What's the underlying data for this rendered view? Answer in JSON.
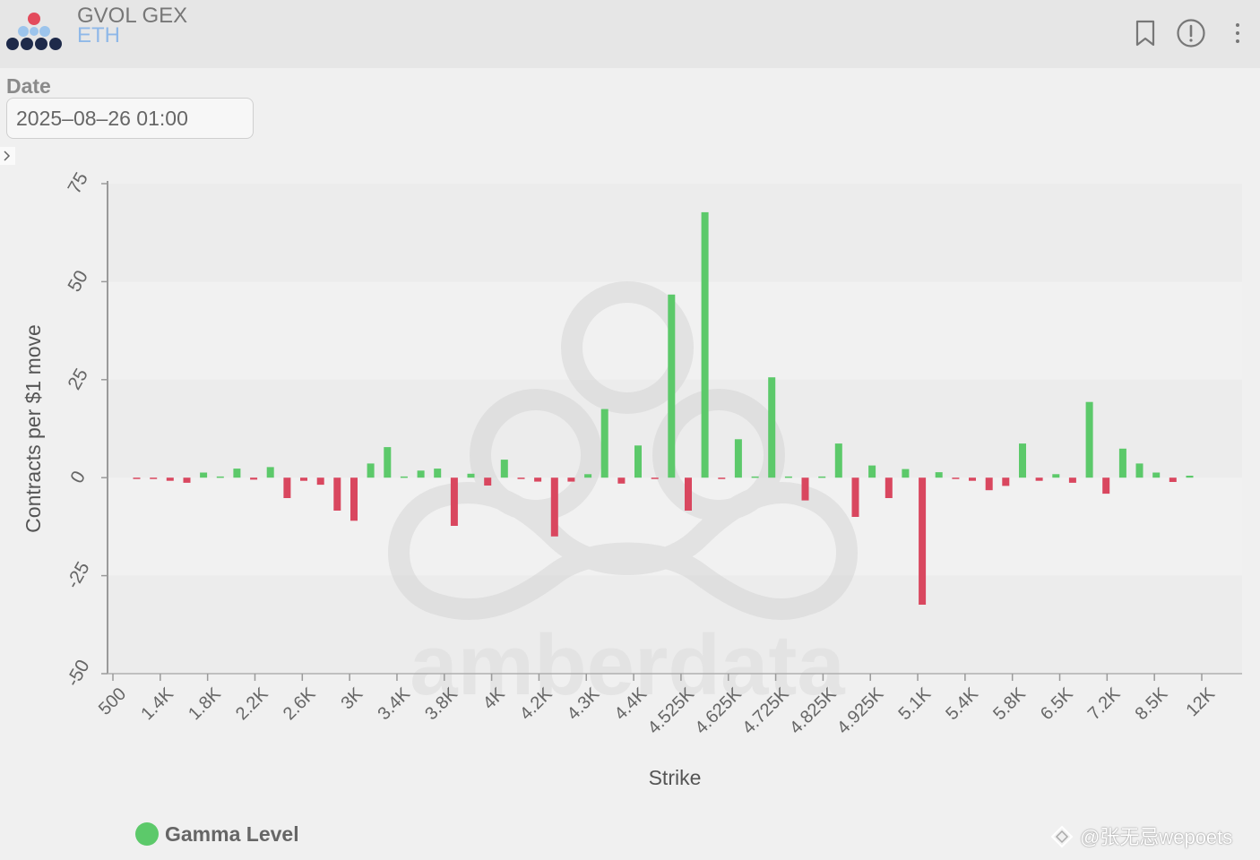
{
  "header": {
    "title": "GVOL GEX",
    "subtitle": "ETH",
    "icons": [
      "bookmark-icon",
      "info-icon",
      "more-vertical-icon"
    ],
    "logo_colors": [
      "#e34b5c",
      "#9cc4ec",
      "#1e2a4a"
    ]
  },
  "filters": {
    "date_label": "Date",
    "date_value": "2025–08–26 01:00"
  },
  "chart_data": {
    "type": "bar",
    "ylabel": "Contracts per $1 move",
    "xlabel": "Strike",
    "ylim": [
      -50,
      75
    ],
    "yticks": [
      75,
      50,
      25,
      0,
      -25,
      -50
    ],
    "xticks": [
      "500",
      "1.4K",
      "1.8K",
      "2.2K",
      "2.6K",
      "3K",
      "3.4K",
      "3.8K",
      "4K",
      "4.2K",
      "4.3K",
      "4.4K",
      "4.525K",
      "4.625K",
      "4.725K",
      "4.825K",
      "4.925K",
      "5.1K",
      "5.4K",
      "5.8K",
      "6.5K",
      "7.2K",
      "8.5K",
      "12K"
    ],
    "grid": true,
    "legend": "bottom-left",
    "positive_color": "#5cc96a",
    "negative_color": "#d9475f",
    "series": [
      {
        "name": "Gamma Level",
        "values": [
          -0.3,
          -0.3,
          -0.8,
          -1.3,
          1.3,
          0.3,
          2.3,
          -0.5,
          2.7,
          -5.2,
          -0.8,
          -1.8,
          -8.4,
          -11.0,
          3.6,
          7.8,
          0.3,
          1.8,
          2.3,
          -12.3,
          1.0,
          -2.0,
          4.6,
          -0.3,
          -1.0,
          -15.0,
          -1.0,
          0.9,
          17.5,
          -1.5,
          8.2,
          -0.3,
          46.7,
          -8.4,
          67.7,
          -0.3,
          9.8,
          0.3,
          25.6,
          0.3,
          -5.8,
          0.3,
          8.7,
          -10.0,
          3.1,
          -5.2,
          2.2,
          -32.4,
          1.4,
          -0.3,
          -0.8,
          -3.2,
          -2.1,
          8.7,
          -0.8,
          0.9,
          -1.3,
          19.3,
          -4.1,
          7.4,
          3.6,
          1.3,
          -1.1,
          0.5
        ]
      }
    ]
  },
  "watermark": {
    "brand": "amberdata",
    "credit": "@张无忌wepoets"
  }
}
